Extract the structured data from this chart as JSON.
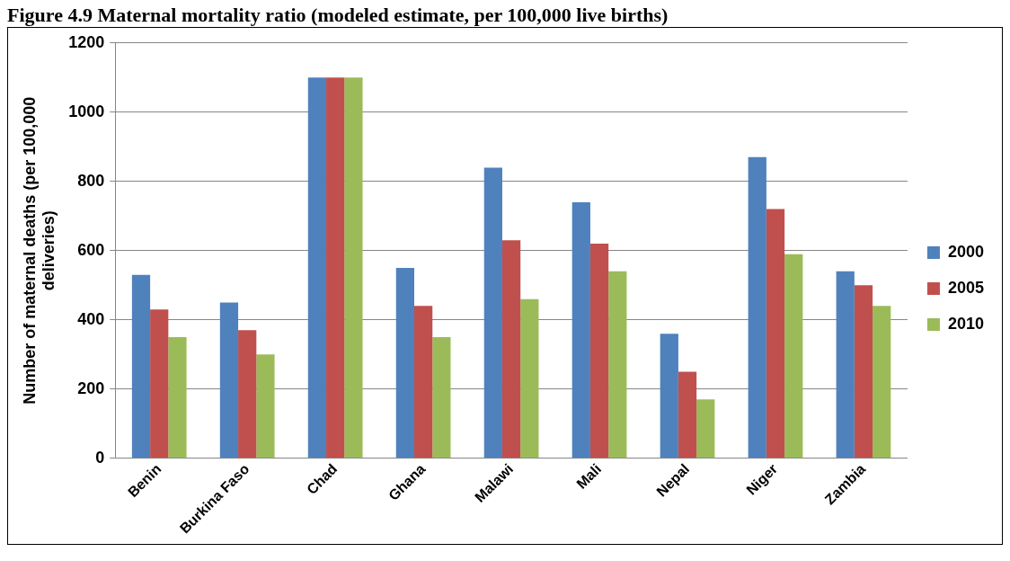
{
  "chart_data": {
    "type": "bar",
    "title": "Figure 4.9     Maternal mortality ratio (modeled estimate, per 100,000 live births)",
    "ylabel": "Number of maternal deaths (per 100,000 deliveries)",
    "categories": [
      "Benin",
      "Burkina Faso",
      "Chad",
      "Ghana",
      "Malawi",
      "Mali",
      "Nepal",
      "Niger",
      "Zambia"
    ],
    "series": [
      {
        "name": "2000",
        "color": "#4f81bd",
        "values": [
          530,
          450,
          1100,
          550,
          840,
          740,
          360,
          870,
          540
        ]
      },
      {
        "name": "2005",
        "color": "#c0504d",
        "values": [
          430,
          370,
          1100,
          440,
          630,
          620,
          250,
          720,
          500
        ]
      },
      {
        "name": "2010",
        "color": "#9bbb59",
        "values": [
          350,
          300,
          1100,
          350,
          460,
          540,
          170,
          590,
          440
        ]
      }
    ],
    "ylim": [
      0,
      1200
    ],
    "yticks": [
      0,
      200,
      400,
      600,
      800,
      1000,
      1200
    ],
    "grid": "y",
    "legend": "right"
  }
}
